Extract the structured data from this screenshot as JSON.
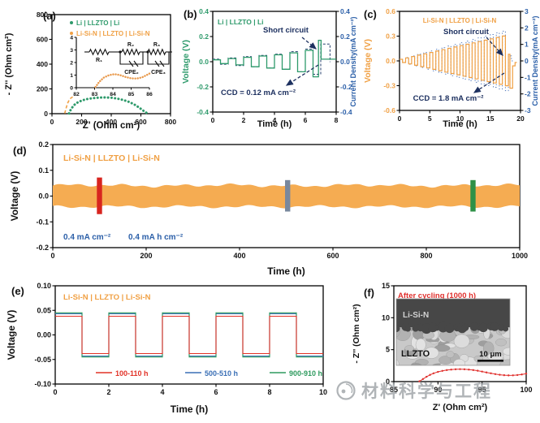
{
  "figure": {
    "labels": {
      "a": "(a)",
      "b": "(b)",
      "c": "(c)",
      "d": "(d)",
      "e": "(e)",
      "f": "(f)"
    }
  },
  "watermark": {
    "text": "材料科学与工程"
  },
  "colors": {
    "green": "#2E9A6B",
    "orange": "#F0A044",
    "band_orange": "#F5AC52",
    "blue": "#2B5FA8",
    "navy": "#1E3160",
    "red": "#E23227",
    "bar_red": "#D8251F",
    "bar_gray": "#79889D",
    "bar_green": "#2E9147",
    "legend_blue": "#3A6FB5",
    "legend_green": "#2E9A5E",
    "black": "#111111"
  },
  "chart_data": [
    {
      "id": "a",
      "type": "scatter",
      "xlabel": "Z' (Ohm cm²)",
      "ylabel": "- Z'' (Ohm cm²)",
      "xlim": [
        0,
        800
      ],
      "ylim": [
        0,
        800
      ],
      "xticks": [
        0,
        200,
        400,
        600,
        800
      ],
      "yticks": [
        0,
        200,
        400,
        600,
        800
      ],
      "legend": [
        {
          "label": "Li | LLZTO | Li",
          "color": "#2E9A6B"
        },
        {
          "label": "Li-Si-N | LLZTO | Li-Si-N",
          "color": "#F0A044"
        }
      ],
      "series": [
        {
          "name": "Li | LLZTO | Li",
          "color": "#2E9A6B",
          "style": "dots",
          "points": [
            [
              115,
              2
            ],
            [
              130,
              40
            ],
            [
              150,
              70
            ],
            [
              175,
              92
            ],
            [
              205,
              108
            ],
            [
              240,
              119
            ],
            [
              280,
              126
            ],
            [
              320,
              130
            ],
            [
              360,
              131
            ],
            [
              400,
              129
            ],
            [
              440,
              122
            ],
            [
              480,
              111
            ],
            [
              520,
              95
            ],
            [
              555,
              75
            ],
            [
              585,
              52
            ],
            [
              610,
              30
            ],
            [
              628,
              14
            ],
            [
              640,
              6
            ]
          ]
        },
        {
          "name": "Li-Si-N | LLZTO | Li-Si-N",
          "color": "#F0A044",
          "style": "dashed",
          "points": [
            [
              86,
              2
            ],
            [
              92,
              30
            ],
            [
              99,
              60
            ],
            [
              107,
              88
            ],
            [
              116,
              110
            ],
            [
              127,
              126
            ],
            [
              140,
              136
            ]
          ]
        }
      ],
      "inset_plot": {
        "xlim": [
          82,
          86
        ],
        "ylim": [
          0,
          4
        ],
        "xticks": [
          82,
          83,
          84,
          85,
          86
        ],
        "yticks": [
          0,
          1,
          2,
          3,
          4
        ],
        "color": "#E8984A",
        "points": [
          [
            83.05,
            0.05
          ],
          [
            83.25,
            0.45
          ],
          [
            83.5,
            0.8
          ],
          [
            83.8,
            1.0
          ],
          [
            84.1,
            1.08
          ],
          [
            84.4,
            1.0
          ],
          [
            84.7,
            0.85
          ],
          [
            85.0,
            0.74
          ],
          [
            85.3,
            0.72
          ],
          [
            85.6,
            0.82
          ],
          [
            85.85,
            1.0
          ],
          [
            86.0,
            1.12
          ]
        ]
      },
      "circuit": {
        "r1": "R₁",
        "r2": "R₂",
        "r3": "R₃",
        "cpe2": "CPE₂",
        "cpe3": "CPE₃"
      }
    },
    {
      "id": "b",
      "type": "line",
      "inplot_title": "Li | LLZTO | Li",
      "xlabel": "Time (h)",
      "ylabel_left": "Voltage (V)",
      "ylabel_right": "Current Density(mA cm⁻²)",
      "xlim": [
        0,
        8
      ],
      "ylim": [
        -0.4,
        0.4
      ],
      "y2lim": [
        -0.4,
        0.4
      ],
      "xticks": [
        0,
        2,
        4,
        6,
        8
      ],
      "yticks": [
        "0.4",
        "0.2",
        "0.0",
        "-0.2",
        "-0.4"
      ],
      "y2ticks": [
        "0.4",
        "0.2",
        "0.0",
        "-0.2",
        "-0.4"
      ],
      "annotations": {
        "short_circuit": "Short circuit",
        "ccd": "CCD = 0.12 mA cm⁻²"
      },
      "voltage_steps": [
        [
          0,
          0.015
        ],
        [
          0.5,
          -0.015
        ],
        [
          1,
          0.025
        ],
        [
          1.5,
          -0.025
        ],
        [
          2,
          0.035
        ],
        [
          2.5,
          -0.04
        ],
        [
          3,
          0.045
        ],
        [
          3.5,
          -0.05
        ],
        [
          4,
          0.055
        ],
        [
          4.5,
          -0.06
        ],
        [
          5,
          0.07
        ],
        [
          5.5,
          -0.08
        ],
        [
          6,
          0.09
        ],
        [
          6.5,
          -0.12
        ],
        [
          6.85,
          0.17
        ],
        [
          7.02,
          0.02
        ],
        [
          8,
          0.02
        ]
      ],
      "voltage_end": 8,
      "current_steps": [
        [
          0,
          0.02
        ],
        [
          0.5,
          -0.02
        ],
        [
          1,
          0.03
        ],
        [
          1.5,
          -0.03
        ],
        [
          2,
          0.04
        ],
        [
          2.5,
          -0.04
        ],
        [
          3,
          0.05
        ],
        [
          3.5,
          -0.05
        ],
        [
          4,
          0.06
        ],
        [
          4.5,
          -0.06
        ],
        [
          5,
          0.08
        ],
        [
          5.5,
          -0.08
        ],
        [
          6,
          0.1
        ],
        [
          6.5,
          -0.1
        ],
        [
          7,
          0.14
        ],
        [
          7.6,
          0.0
        ]
      ],
      "current_end": 7.62
    },
    {
      "id": "c",
      "type": "line",
      "inplot_title": "Li-Si-N | LLZTO | Li-Si-N",
      "xlabel": "Time (h)",
      "ylabel_left": "Voltage (V)",
      "ylabel_right": "Current Density(mA cm⁻²)",
      "xlim": [
        0,
        20
      ],
      "ylim": [
        -0.6,
        0.6
      ],
      "y2lim": [
        -3,
        3
      ],
      "xticks": [
        0,
        5,
        10,
        15,
        20
      ],
      "yticks": [
        "0.6",
        "0.3",
        "0.0",
        "-0.3",
        "-0.6"
      ],
      "y2ticks": [
        "3",
        "2",
        "1",
        "0",
        "-1",
        "-2",
        "-3"
      ],
      "annotations": {
        "short_circuit": "Short circuit",
        "ccd": "CCD = 1.8 mA cm⁻²"
      },
      "wave": {
        "period": 1,
        "cycles": 18,
        "amp_start": 0.02,
        "amp_step": 0.0165
      },
      "voltage_tail": [
        [
          18,
          0.08
        ],
        [
          18.25,
          -0.33
        ],
        [
          18.7,
          -0.06
        ],
        [
          19.1,
          -0.02
        ]
      ],
      "voltage_end": 19.4,
      "current_wave": {
        "period": 1,
        "cycles": 18,
        "i_start": 0.1,
        "i_step": 0.1
      },
      "current_tail": [
        [
          18,
          0.3
        ],
        [
          18.5,
          0.0
        ]
      ],
      "current_end": 19.0
    },
    {
      "id": "d",
      "type": "line",
      "inplot_title": "Li-Si-N | LLZTO | Li-Si-N",
      "xlabel": "Time (h)",
      "ylabel": "Voltage (V)",
      "xlim": [
        0,
        1000
      ],
      "ylim": [
        -0.2,
        0.2
      ],
      "xticks": [
        0,
        200,
        400,
        600,
        800,
        1000
      ],
      "yticks": [
        "0.2",
        "0.1",
        "0.0",
        "-0.1",
        "-0.2"
      ],
      "rate_labels": [
        "0.4 mA cm⁻²",
        "0.4 mA h cm⁻²"
      ],
      "band": {
        "amplitude": 0.045,
        "color": "#F5AC52"
      },
      "highlight_markers": [
        {
          "x": 100,
          "y_top": 0.072,
          "y_bot": -0.07,
          "color": "#D8251F"
        },
        {
          "x": 503,
          "y_top": 0.062,
          "y_bot": -0.06,
          "color": "#79889D"
        },
        {
          "x": 900,
          "y_top": 0.062,
          "y_bot": -0.06,
          "color": "#2E9147"
        }
      ]
    },
    {
      "id": "e",
      "type": "line",
      "inplot_title": "Li-Si-N | LLZTO | Li-Si-N",
      "xlabel": "Time (h)",
      "ylabel": "Voltage (V)",
      "xlim": [
        0,
        10
      ],
      "ylim": [
        -0.1,
        0.1
      ],
      "xticks": [
        0,
        2,
        4,
        6,
        8,
        10
      ],
      "yticks": [
        "0.10",
        "0.05",
        "0.00",
        "-0.05",
        "-0.10"
      ],
      "wave": {
        "period": 2,
        "cycles": 5
      },
      "series": [
        {
          "name": "100-110 h",
          "color": "#E23227",
          "amplitude": 0.038
        },
        {
          "name": "500-510 h",
          "color": "#3A6FB5",
          "amplitude": 0.043
        },
        {
          "name": "900-910 h",
          "color": "#2E9A5E",
          "amplitude": 0.045
        }
      ]
    },
    {
      "id": "f",
      "type": "scatter",
      "inplot_title": "After cycling (1000 h)",
      "xlabel": "Z' (Ohm cm²)",
      "ylabel": "- Z'' (Ohm cm²)",
      "xlim": [
        85,
        100
      ],
      "ylim": [
        0,
        15
      ],
      "xticks": [
        85,
        90,
        95,
        100
      ],
      "yticks": [
        0,
        5,
        10,
        15
      ],
      "series": [
        {
          "name": "after cycling (1000 h)",
          "color": "#E0312E",
          "points": [
            [
              87.9,
              0.05
            ],
            [
              88.3,
              0.4
            ],
            [
              88.7,
              0.75
            ],
            [
              89.1,
              1.05
            ],
            [
              89.5,
              1.3
            ],
            [
              90,
              1.52
            ],
            [
              90.5,
              1.68
            ],
            [
              91,
              1.8
            ],
            [
              91.5,
              1.88
            ],
            [
              92,
              1.93
            ],
            [
              92.5,
              1.95
            ],
            [
              93,
              1.93
            ],
            [
              93.5,
              1.88
            ],
            [
              94,
              1.8
            ],
            [
              94.5,
              1.7
            ],
            [
              95,
              1.57
            ],
            [
              95.5,
              1.43
            ],
            [
              96,
              1.3
            ],
            [
              96.5,
              1.17
            ],
            [
              97,
              1.07
            ],
            [
              97.5,
              1.0
            ],
            [
              98,
              0.97
            ],
            [
              98.5,
              0.98
            ],
            [
              99,
              1.03
            ],
            [
              99.5,
              1.12
            ],
            [
              100,
              1.25
            ]
          ]
        }
      ],
      "sem_inset": {
        "top_label": "Li-Si-N",
        "bottom_label": "LLZTO",
        "scale_label": "10 μm"
      }
    }
  ]
}
